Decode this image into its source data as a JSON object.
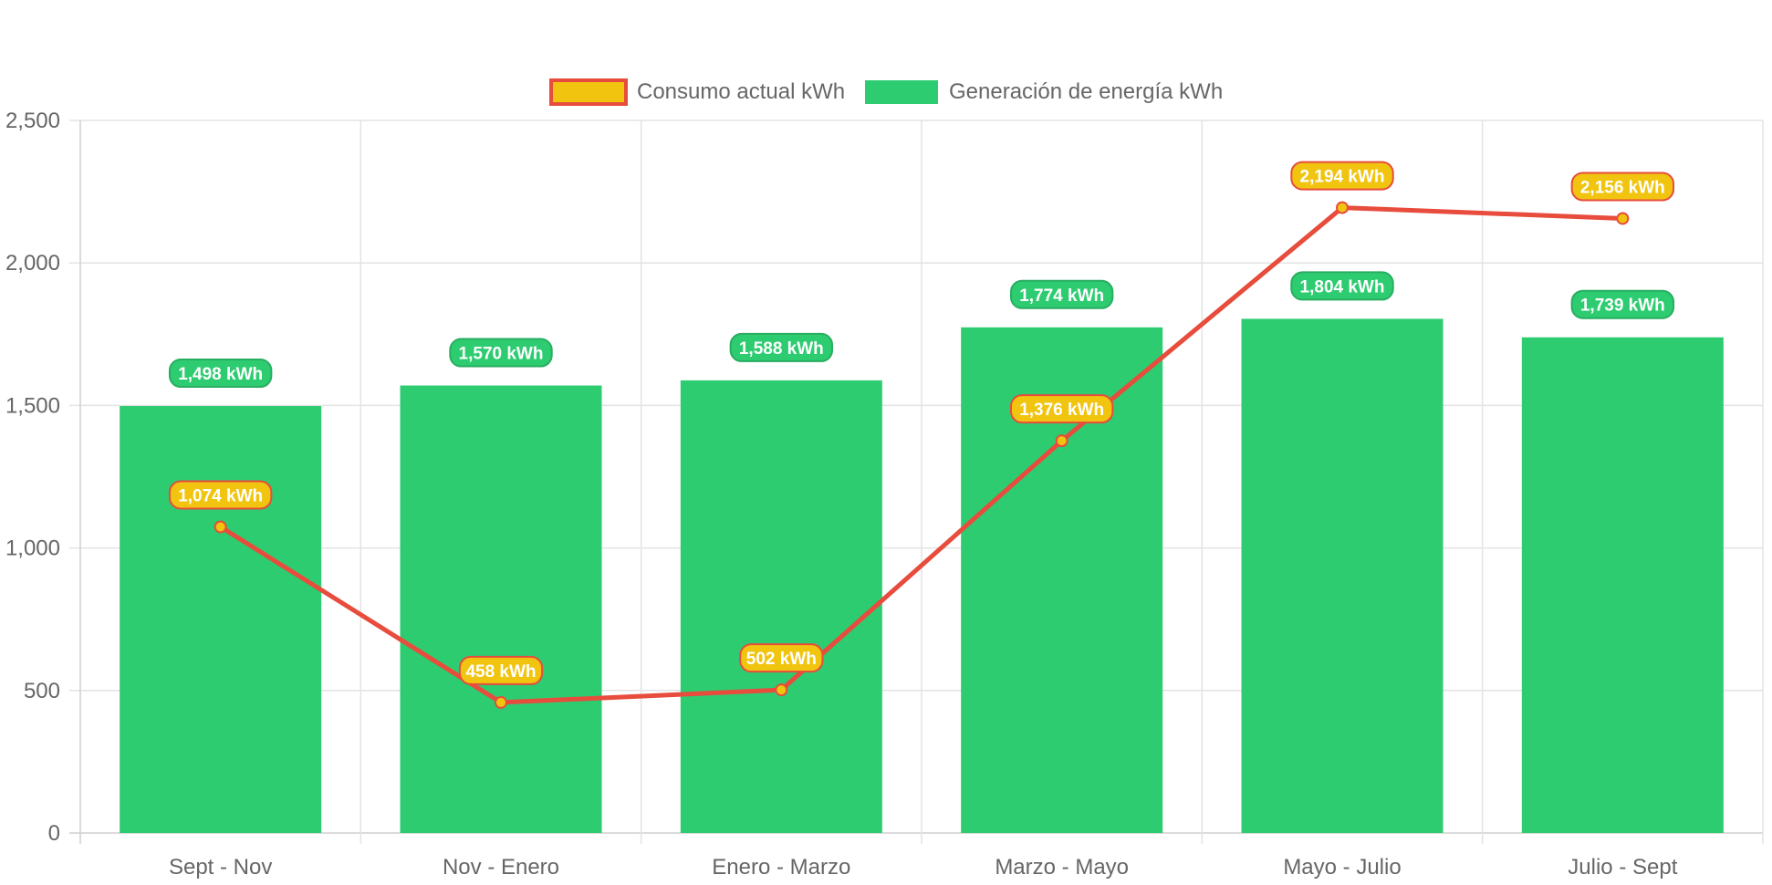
{
  "chart_data": {
    "type": "bar",
    "categories": [
      "Sept - Nov",
      "Nov - Enero",
      "Enero - Marzo",
      "Marzo - Mayo",
      "Mayo - Julio",
      "Julio - Sept"
    ],
    "series": [
      {
        "name": "Consumo actual kWh",
        "type": "line",
        "values": [
          1074,
          458,
          502,
          1376,
          2194,
          2156
        ],
        "labels": [
          "1,074 kWh",
          "458 kWh",
          "502 kWh",
          "1,376 kWh",
          "2,194 kWh",
          "2,156 kWh"
        ],
        "line_color": "#E74C3C",
        "fill_color": "#F1C40F"
      },
      {
        "name": "Generación de energía kWh",
        "type": "bar",
        "values": [
          1498,
          1570,
          1588,
          1774,
          1804,
          1739
        ],
        "labels": [
          "1,498 kWh",
          "1,570 kWh",
          "1,588 kWh",
          "1,774 kWh",
          "1,804 kWh",
          "1,739 kWh"
        ],
        "color": "#2ECC71",
        "label_border": "#27AE60"
      }
    ],
    "y_ticks": [
      "0",
      "500",
      "1,000",
      "1,500",
      "2,000",
      "2,500"
    ],
    "ylim": [
      0,
      2500
    ],
    "grid": true,
    "legend_position": "top-center"
  }
}
